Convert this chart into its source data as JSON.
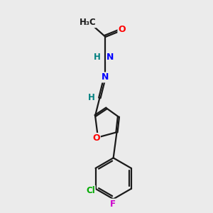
{
  "background_color": "#ebebeb",
  "bond_color": "#1a1a1a",
  "atom_colors": {
    "O": "#ff0000",
    "N": "#0000ff",
    "Cl": "#00aa00",
    "F": "#cc00cc",
    "H": "#008080",
    "C": "#1a1a1a"
  },
  "figsize": [
    3.0,
    3.0
  ],
  "dpi": 100
}
